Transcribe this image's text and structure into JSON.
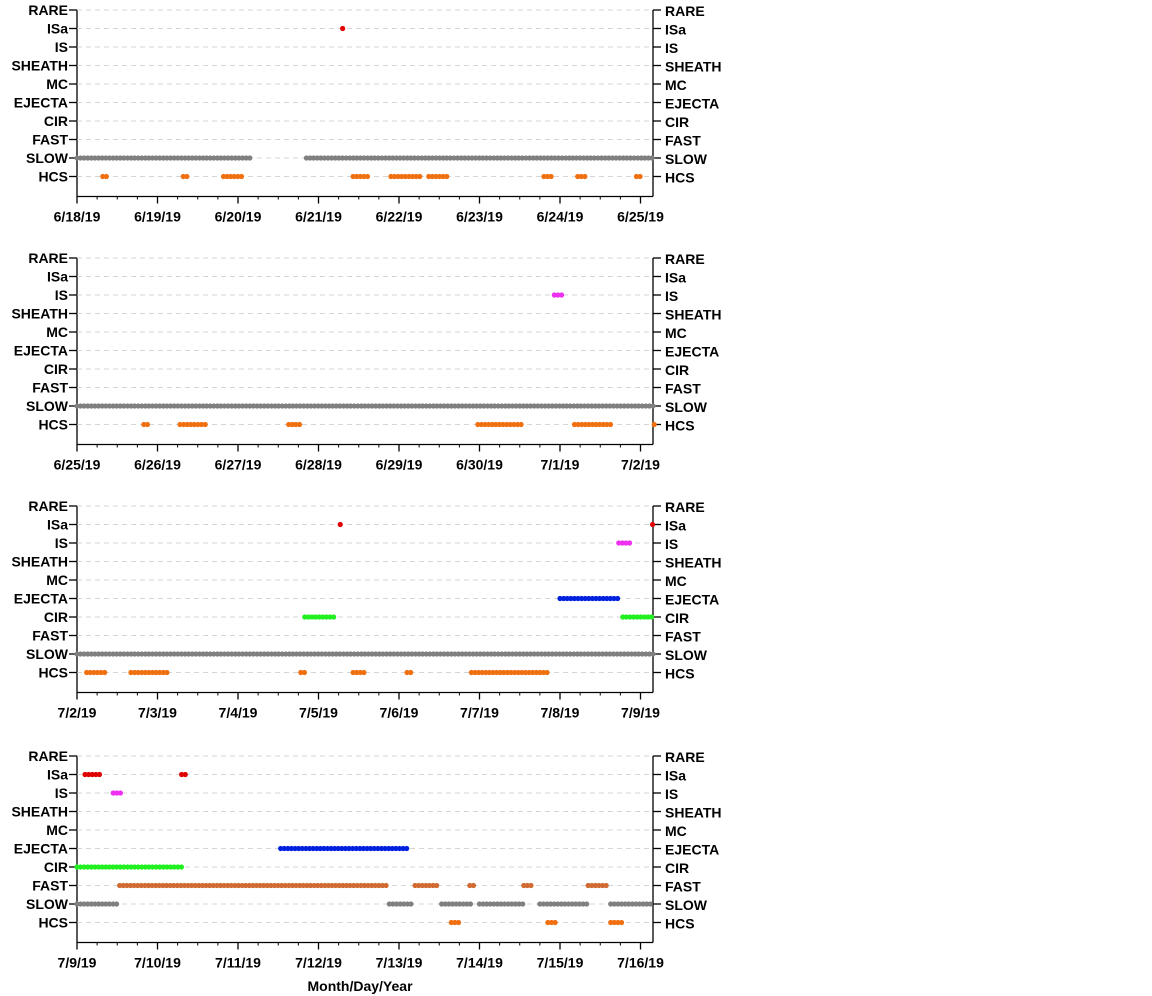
{
  "chart_data": {
    "type": "scatter",
    "x_title": "Month/Day/Year",
    "categories": [
      "RARE",
      "ISa",
      "IS",
      "SHEATH",
      "MC",
      "EJECTA",
      "CIR",
      "FAST",
      "SLOW",
      "HCS"
    ],
    "colors": {
      "SLOW": "#808080",
      "HCS": "#f07010",
      "ISa": "#e00000",
      "IS": "#f030f0",
      "EJECTA": "#0020e0",
      "CIR": "#20f020",
      "FAST": "#d06a30"
    },
    "grid": true,
    "panels": [
      {
        "x_range": [
          "2019-06-18",
          "2019-06-25"
        ],
        "x_tick_labels": [
          "6/18/19",
          "6/19/19",
          "6/20/19",
          "6/21/19",
          "6/22/19",
          "6/23/19",
          "6/24/19",
          "6/25/19"
        ],
        "series": [
          {
            "category": "SLOW",
            "intervals": [
              [
                0.0,
                2.15
              ],
              [
                2.85,
                7.2
              ]
            ]
          },
          {
            "category": "HCS",
            "intervals": [
              [
                0.32,
                0.4
              ],
              [
                1.32,
                1.4
              ],
              [
                1.82,
                2.07
              ],
              [
                3.43,
                3.63
              ],
              [
                3.9,
                4.27
              ],
              [
                4.37,
                4.62
              ],
              [
                5.8,
                5.9
              ],
              [
                6.22,
                6.35
              ],
              [
                6.95,
                7.02
              ]
            ]
          },
          {
            "category": "ISa",
            "intervals": [
              [
                3.3,
                3.3
              ]
            ]
          }
        ]
      },
      {
        "x_range": [
          "2019-06-25",
          "2019-07-02"
        ],
        "x_tick_labels": [
          "6/25/19",
          "6/26/19",
          "6/27/19",
          "6/28/19",
          "6/29/19",
          "6/30/19",
          "7/1/19",
          "7/2/19"
        ],
        "series": [
          {
            "category": "SLOW",
            "intervals": [
              [
                0.0,
                7.2
              ]
            ]
          },
          {
            "category": "HCS",
            "intervals": [
              [
                0.83,
                0.9
              ],
              [
                1.28,
                1.63
              ],
              [
                2.63,
                2.8
              ],
              [
                4.98,
                5.53
              ],
              [
                6.18,
                6.63
              ],
              [
                7.17,
                7.2
              ]
            ]
          },
          {
            "category": "IS",
            "intervals": [
              [
                5.93,
                6.02
              ]
            ]
          }
        ]
      },
      {
        "x_range": [
          "2019-07-02",
          "2019-07-09"
        ],
        "x_tick_labels": [
          "7/2/19",
          "7/3/19",
          "7/4/19",
          "7/5/19",
          "7/6/19",
          "7/7/19",
          "7/8/19",
          "7/9/19"
        ],
        "series": [
          {
            "category": "SLOW",
            "intervals": [
              [
                0.0,
                7.2
              ]
            ]
          },
          {
            "category": "HCS",
            "intervals": [
              [
                0.12,
                0.38
              ],
              [
                0.67,
                1.12
              ],
              [
                2.78,
                2.85
              ],
              [
                3.43,
                3.6
              ],
              [
                4.1,
                4.15
              ],
              [
                4.9,
                5.85
              ]
            ]
          },
          {
            "category": "ISa",
            "intervals": [
              [
                3.27,
                3.27
              ],
              [
                7.15,
                7.2
              ]
            ]
          },
          {
            "category": "IS",
            "intervals": [
              [
                6.73,
                6.88
              ]
            ]
          },
          {
            "category": "EJECTA",
            "intervals": [
              [
                6.0,
                6.72
              ]
            ]
          },
          {
            "category": "CIR",
            "intervals": [
              [
                2.83,
                3.23
              ],
              [
                6.78,
                7.2
              ]
            ]
          }
        ]
      },
      {
        "x_range": [
          "2019-07-09",
          "2019-07-16"
        ],
        "x_tick_labels": [
          "7/9/19",
          "7/10/19",
          "7/11/19",
          "7/12/19",
          "7/13/19",
          "7/14/19",
          "7/15/19",
          "7/16/19"
        ],
        "series": [
          {
            "category": "ISa",
            "intervals": [
              [
                0.1,
                0.3
              ],
              [
                1.3,
                1.35
              ]
            ]
          },
          {
            "category": "IS",
            "intervals": [
              [
                0.45,
                0.55
              ]
            ]
          },
          {
            "category": "EJECTA",
            "intervals": [
              [
                2.53,
                4.1
              ]
            ]
          },
          {
            "category": "CIR",
            "intervals": [
              [
                0.0,
                1.32
              ]
            ]
          },
          {
            "category": "FAST",
            "intervals": [
              [
                0.53,
                3.88
              ],
              [
                4.2,
                4.47
              ],
              [
                4.88,
                4.93
              ],
              [
                5.55,
                5.65
              ],
              [
                6.35,
                6.6
              ]
            ]
          },
          {
            "category": "SLOW",
            "intervals": [
              [
                0.0,
                0.5
              ],
              [
                3.88,
                4.17
              ],
              [
                4.53,
                4.9
              ],
              [
                5.0,
                5.55
              ],
              [
                5.75,
                6.35
              ],
              [
                6.63,
                7.2
              ]
            ]
          },
          {
            "category": "HCS",
            "intervals": [
              [
                4.65,
                4.75
              ],
              [
                5.85,
                5.97
              ],
              [
                6.63,
                6.8
              ]
            ]
          }
        ]
      }
    ]
  }
}
